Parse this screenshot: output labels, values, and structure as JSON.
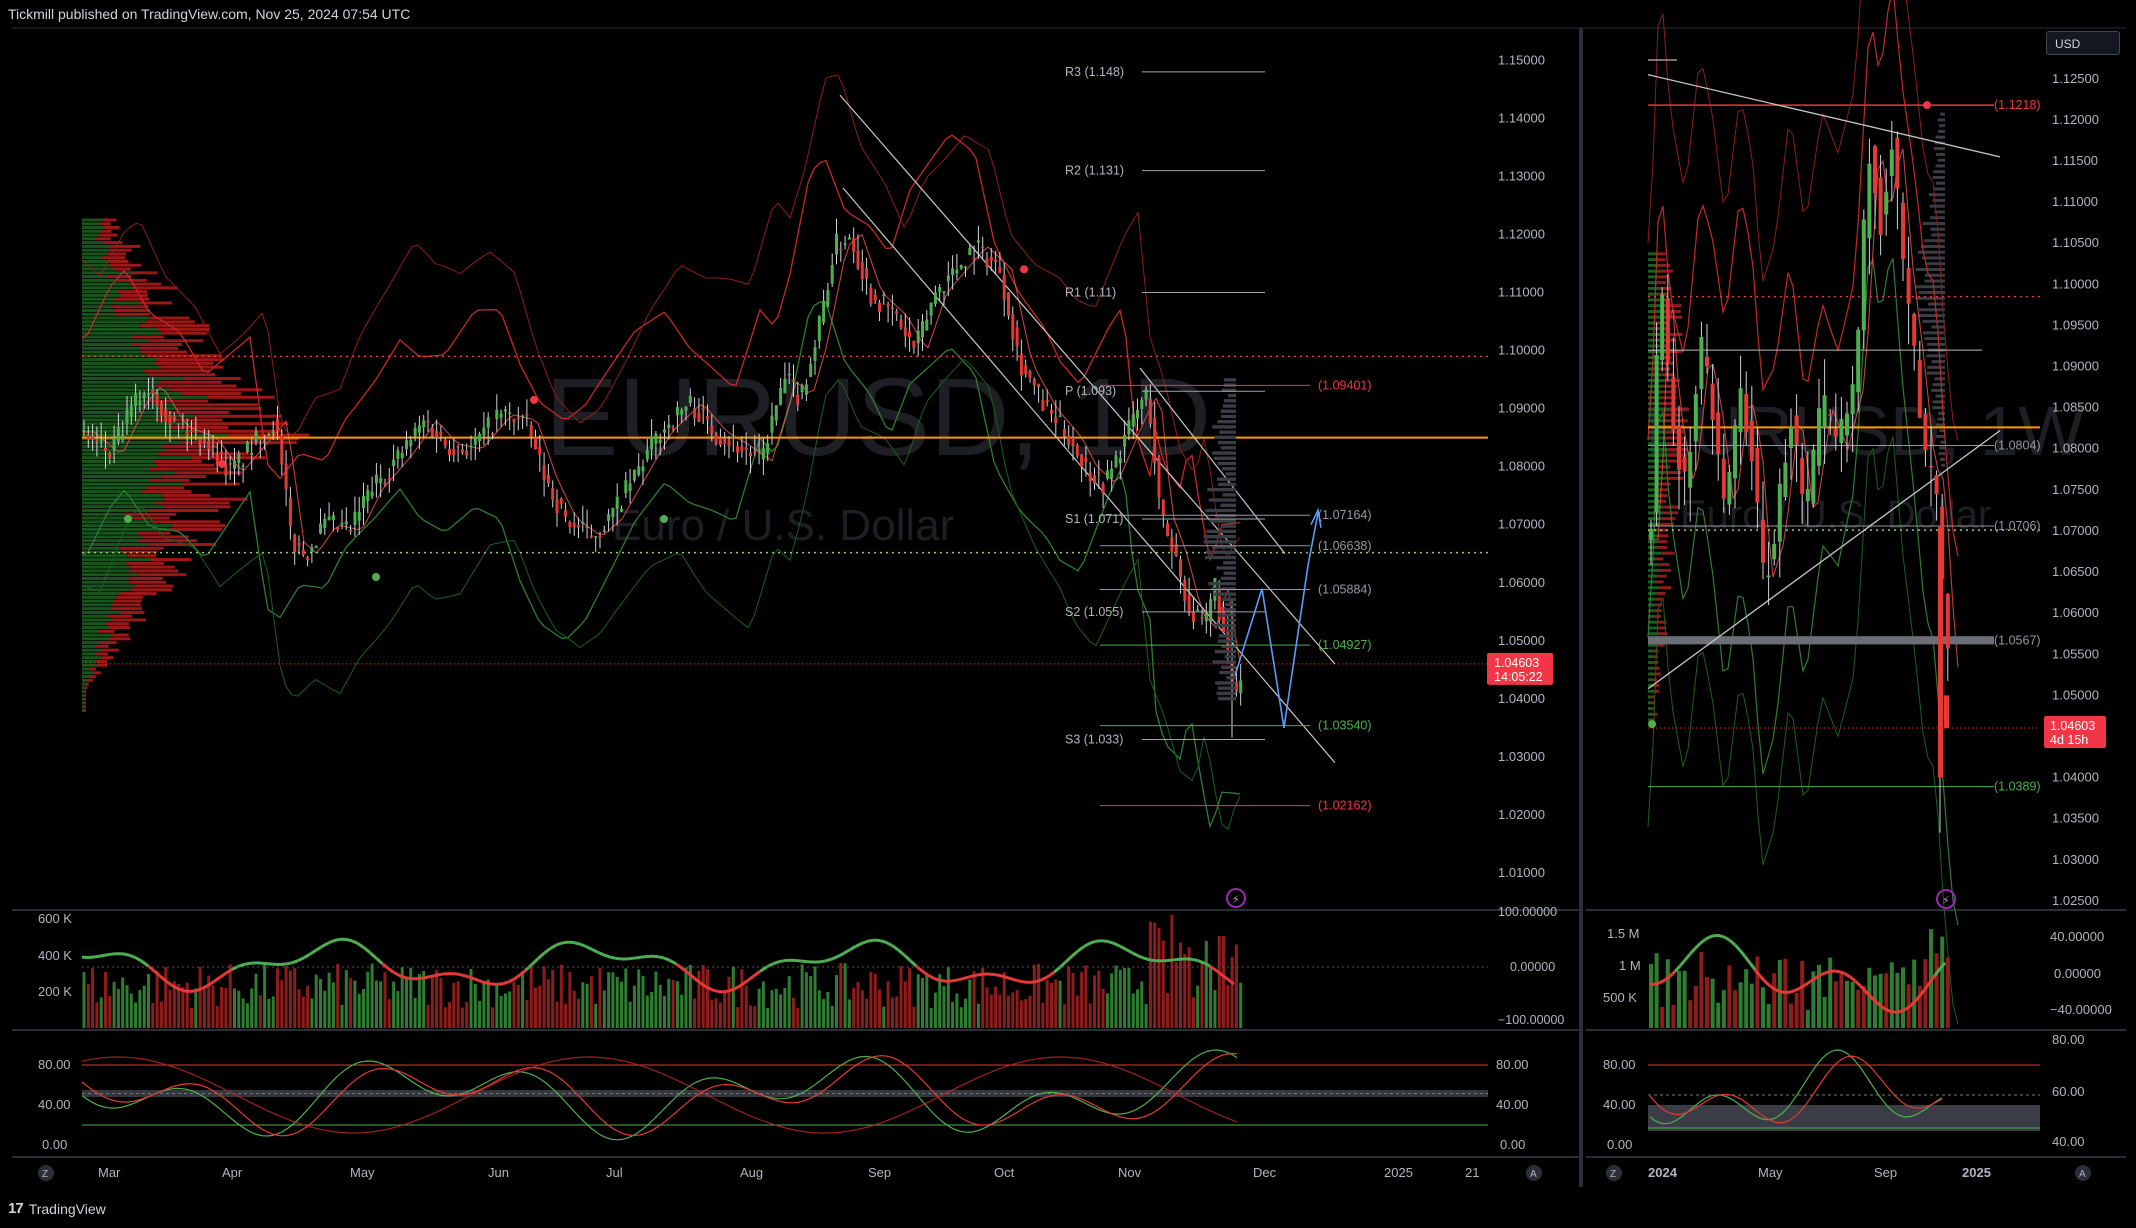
{
  "header": {
    "published": "Tickmill published on TradingView.com, Nov 25, 2024 07:54 UTC"
  },
  "footer": {
    "brand": "TradingView",
    "logo_icon": "tradingview-logo-icon"
  },
  "currency_button": "USD",
  "colors": {
    "bull": "#26a69a",
    "bull_vol": "#2e7d32",
    "bear": "#ef5350",
    "green_line": "#4caf50",
    "red_line": "#e53935",
    "orange": "#ff9800",
    "blue": "#5b9cf6",
    "price_tag": "#f23645"
  },
  "left_chart": {
    "watermark_symbol": "EURUSD, 1D",
    "watermark_name": "Euro / U.S. Dollar",
    "price_ticks": [
      "1.15000",
      "1.14000",
      "1.13000",
      "1.12000",
      "1.11000",
      "1.10000",
      "1.09000",
      "1.08000",
      "1.07000",
      "1.06000",
      "1.05000",
      "1.04000",
      "1.03000",
      "1.02000",
      "1.01000"
    ],
    "price_range": [
      1.0045,
      1.1535
    ],
    "current_price": "1.04603",
    "countdown": "14:05:22",
    "date_labels": [
      "Mar",
      "Apr",
      "May",
      "Jun",
      "Jul",
      "Aug",
      "Sep",
      "Oct",
      "Nov",
      "Dec",
      "2025",
      "21"
    ],
    "pivots": [
      {
        "label": "R3 (1.148)",
        "value": 1.148
      },
      {
        "label": "R2 (1.131)",
        "value": 1.131
      },
      {
        "label": "R1 (1.11)",
        "value": 1.11
      },
      {
        "label": "P (1.093)",
        "value": 1.093
      },
      {
        "label": "S1 (1.071)",
        "value": 1.071
      },
      {
        "label": "S2 (1.055)",
        "value": 1.055
      },
      {
        "label": "S3 (1.033)",
        "value": 1.033
      }
    ],
    "levels": [
      {
        "label": "(1.09401)",
        "value": 1.09401,
        "color": "red"
      },
      {
        "label": "(1.07164)",
        "value": 1.07164,
        "color": "gray"
      },
      {
        "label": "(1.06638)",
        "value": 1.06638,
        "color": "gray"
      },
      {
        "label": "(1.05884)",
        "value": 1.05884,
        "color": "gray"
      },
      {
        "label": "(1.04927)",
        "value": 1.04927,
        "color": "green"
      },
      {
        "label": "(1.03540)",
        "value": 1.0354,
        "color": "green"
      },
      {
        "label": "(1.02162)",
        "value": 1.02162,
        "color": "red"
      }
    ],
    "volume_ticks": [
      "600 K",
      "400 K",
      "200 K"
    ],
    "osc_ticks": [
      "100.00000",
      "0.00000",
      "−100.00000"
    ],
    "stoch_ticks_left": [
      "80.00",
      "40.00",
      "0.00"
    ],
    "stoch_ticks_right": [
      "80.00",
      "40.00",
      "0.00"
    ]
  },
  "right_chart": {
    "watermark_symbol": "EURUSD, 1W",
    "watermark_name": "Euro / U.S. Dollar",
    "price_ticks": [
      "1.12500",
      "1.12000",
      "1.11500",
      "1.11000",
      "1.10500",
      "1.10000",
      "1.09500",
      "1.09000",
      "1.08500",
      "1.08000",
      "1.07500",
      "1.07000",
      "1.06500",
      "1.06000",
      "1.05500",
      "1.05000",
      "1.04500",
      "1.04000",
      "1.03500",
      "1.03000",
      "1.02500"
    ],
    "price_range": [
      1.0245,
      1.1285
    ],
    "current_price": "1.04603",
    "countdown": "4d 15h",
    "date_labels": [
      "2024",
      "May",
      "Sep",
      "2025"
    ],
    "levels": [
      {
        "label": "(1.1218)",
        "value": 1.1218,
        "color": "red"
      },
      {
        "label": "(1.0804)",
        "value": 1.0804,
        "color": "gray"
      },
      {
        "label": "(1.0706)",
        "value": 1.0706,
        "color": "gray"
      },
      {
        "label": "(1.0567)",
        "value": 1.0567,
        "color": "gray"
      },
      {
        "label": "(1.0389)",
        "value": 1.0389,
        "color": "green"
      }
    ],
    "volume_ticks": [
      "1.5 M",
      "1 M",
      "500 K"
    ],
    "osc_ticks": [
      "40.00000",
      "0.00000",
      "−40.00000"
    ],
    "stoch_ticks_left": [
      "80.00",
      "40.00",
      "0.00"
    ],
    "stoch_ticks_right": [
      "80.00",
      "60.00",
      "40.00"
    ]
  },
  "icons": {
    "zoom": "Z",
    "auto": "A",
    "alert": "lightning-icon"
  }
}
